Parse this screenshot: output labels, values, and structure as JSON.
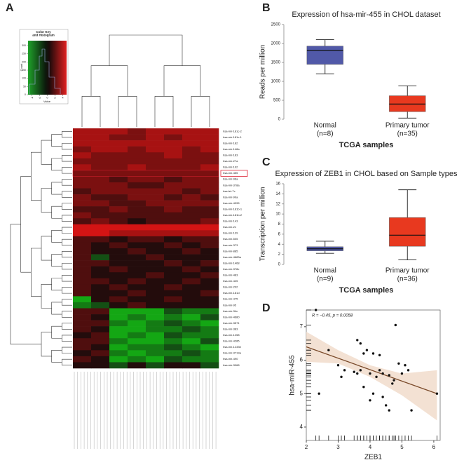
{
  "chart_data": [
    {
      "type": "heatmap",
      "panel": "A",
      "rows": [
        "hsa-mir-181c-2",
        "hsa-mir-181c-1",
        "hsa-mir-182",
        "hsa-mir-148a",
        "hsa-mir-183",
        "hsa-mir-27a",
        "hsa-mir-192",
        "hsa-mir-455",
        "hsa-mir-96a",
        "hsa-mir-378a",
        "hsa-let-7c",
        "hsa-mir-99a",
        "hsa-mir-4995",
        "hsa-mir-181b-1",
        "hsa-mir-181b-2",
        "hsa-mir-143",
        "hsa-mir-21",
        "hsa-mir-139",
        "hsa-mir-505",
        "hsa-mir-373",
        "hsa-mir-885",
        "hsa-mir-4683a",
        "hsa-mir-1468",
        "hsa-mir-378c",
        "hsa-mir-483",
        "hsa-mir-425",
        "hsa-mir-202",
        "hsa-mir-181d",
        "hsa-mir-475",
        "hsa-mir-95",
        "hsa-mir-34c",
        "hsa-mir-4680",
        "hsa-mir-3571",
        "hsa-mir-383",
        "hsa-mir-1258",
        "hsa-mir-4285",
        "hsa-mir-1233b",
        "hsa-mir-3713a",
        "hsa-mir-490",
        "hsa-mir-3068"
      ],
      "highlight_row": 7,
      "values": [
        [
          3,
          3,
          3,
          2,
          3,
          3,
          3,
          3
        ],
        [
          3,
          3,
          2,
          2,
          3,
          2,
          3,
          3
        ],
        [
          3,
          3,
          3,
          3,
          3,
          3,
          3,
          3
        ],
        [
          2,
          3,
          3,
          2,
          3,
          3,
          2,
          3
        ],
        [
          3,
          2,
          2,
          2,
          2,
          3,
          2,
          2
        ],
        [
          2,
          2,
          2,
          2,
          2,
          2,
          2,
          2
        ],
        [
          3,
          2,
          2,
          3,
          2,
          2,
          2,
          3
        ],
        [
          2,
          2,
          2,
          2,
          2,
          2,
          2,
          2
        ],
        [
          2,
          2,
          1,
          2,
          2,
          1,
          2,
          2
        ],
        [
          2,
          2,
          2,
          1,
          1,
          2,
          2,
          2
        ],
        [
          1,
          2,
          2,
          2,
          2,
          2,
          1,
          2
        ],
        [
          2,
          1,
          1,
          2,
          2,
          1,
          2,
          1
        ],
        [
          2,
          2,
          1,
          1,
          2,
          2,
          2,
          2
        ],
        [
          1,
          1,
          2,
          1,
          1,
          2,
          1,
          1
        ],
        [
          2,
          1,
          1,
          1,
          1,
          1,
          1,
          1
        ],
        [
          1,
          2,
          1,
          0,
          1,
          1,
          1,
          2
        ],
        [
          4,
          4,
          4,
          4,
          4,
          4,
          4,
          4
        ],
        [
          4,
          4,
          3,
          3,
          3,
          3,
          3,
          3
        ],
        [
          1,
          1,
          0,
          1,
          1,
          0,
          1,
          1
        ],
        [
          1,
          0,
          1,
          0,
          0,
          1,
          0,
          1
        ],
        [
          1,
          0,
          0,
          1,
          0,
          0,
          1,
          0
        ],
        [
          1,
          -1,
          0,
          0,
          1,
          0,
          0,
          0
        ],
        [
          1,
          1,
          0,
          0,
          0,
          1,
          0,
          1
        ],
        [
          1,
          0,
          1,
          0,
          0,
          0,
          1,
          0
        ],
        [
          1,
          0,
          0,
          0,
          1,
          0,
          0,
          1
        ],
        [
          1,
          1,
          0,
          1,
          0,
          0,
          1,
          0
        ],
        [
          1,
          0,
          1,
          0,
          0,
          1,
          0,
          0
        ],
        [
          1,
          0,
          0,
          1,
          0,
          0,
          0,
          1
        ],
        [
          -3,
          0,
          1,
          0,
          0,
          1,
          0,
          0
        ],
        [
          -2,
          -1,
          0,
          1,
          0,
          0,
          0,
          0
        ],
        [
          1,
          1,
          -3,
          -3,
          -3,
          -1,
          -2,
          -2
        ],
        [
          1,
          0,
          -3,
          -2,
          -3,
          -2,
          -3,
          -1
        ],
        [
          1,
          1,
          -2,
          -3,
          -2,
          -1,
          -2,
          -3
        ],
        [
          1,
          0,
          -3,
          -3,
          -2,
          -2,
          -1,
          -2
        ],
        [
          0,
          1,
          -3,
          -2,
          -3,
          -1,
          -2,
          -2
        ],
        [
          1,
          1,
          -2,
          -3,
          -3,
          -2,
          -3,
          -1
        ],
        [
          1,
          0,
          -3,
          -2,
          -2,
          -1,
          -2,
          -3
        ],
        [
          0,
          1,
          -2,
          -3,
          -2,
          -2,
          -1,
          -2
        ],
        [
          1,
          0,
          -3,
          -2,
          -3,
          -1,
          -2,
          -2
        ],
        [
          0,
          0,
          -1,
          0,
          -1,
          0,
          0,
          -1
        ]
      ],
      "color_key": {
        "title": [
          "Color Key",
          "and Histogram"
        ],
        "xlabel": "Value",
        "ylabel": "Count",
        "xlim": [
          -5,
          5
        ],
        "xticks": [
          -4,
          -2,
          0,
          2,
          4
        ],
        "ylim": [
          0,
          330
        ],
        "yticks": [
          0,
          50,
          100,
          150,
          200,
          250,
          300
        ]
      }
    },
    {
      "type": "box",
      "panel": "B",
      "title": "Expression of hsa-mir-455 in CHOL dataset",
      "ylabel": "Reads per million",
      "xlabel": "TCGA samples",
      "categories": [
        "Normal",
        "Primary tumor"
      ],
      "n_labels": [
        "(n=8)",
        "(n=35)"
      ],
      "min": [
        1200,
        30
      ],
      "q1": [
        1450,
        200
      ],
      "median": [
        1820,
        400
      ],
      "q3": [
        1930,
        620
      ],
      "max": [
        2100,
        880
      ],
      "colors": [
        "#5159a8",
        "#e8391f"
      ],
      "ylim": [
        0,
        2500
      ],
      "yticks": [
        0,
        500,
        1000,
        1500,
        2000,
        2500
      ]
    },
    {
      "type": "box",
      "panel": "C",
      "title": "Expression of ZEB1 in CHOL based on Sample types",
      "ylabel": "Transcription per million",
      "xlabel": "TCGA samples",
      "categories": [
        "Normal",
        "Primary tumor"
      ],
      "n_labels": [
        "(n=9)",
        "(n=36)"
      ],
      "min": [
        2.2,
        0.9
      ],
      "q1": [
        2.7,
        3.6
      ],
      "median": [
        3.1,
        5.8
      ],
      "q3": [
        3.5,
        9.3
      ],
      "max": [
        4.6,
        14.8
      ],
      "colors": [
        "#5159a8",
        "#e8391f"
      ],
      "ylim": [
        0,
        16
      ],
      "yticks": [
        0,
        2,
        4,
        6,
        8,
        10,
        12,
        14,
        16
      ]
    },
    {
      "type": "scatter",
      "panel": "D",
      "annotation": "R = −0.45, p = 0.0058",
      "xlabel": "ZEB1",
      "ylabel": "hsa-miR-455",
      "x": [
        2.3,
        3.6,
        3.7,
        4.8,
        3.9,
        4.1,
        4.3,
        3.8,
        2.7,
        3.0,
        3.2,
        3.1,
        3.6,
        3.7,
        4.0,
        4.2,
        4.4,
        4.6,
        5.0,
        5.2,
        4.7,
        4.9,
        5.1,
        4.1,
        4.4,
        4.5,
        4.6,
        4.0,
        3.8,
        2.4,
        5.3,
        6.1,
        3.5,
        4.3,
        4.75
      ],
      "y": [
        7.5,
        6.6,
        6.5,
        7.05,
        6.3,
        6.2,
        6.15,
        6.2,
        6.3,
        5.85,
        5.7,
        5.5,
        5.6,
        5.7,
        5.6,
        5.5,
        5.6,
        5.55,
        5.6,
        5.7,
        5.3,
        5.9,
        5.85,
        5.0,
        4.9,
        4.65,
        4.5,
        4.8,
        5.2,
        5.0,
        4.5,
        5.0,
        5.65,
        5.7,
        5.4
      ],
      "fit": {
        "x": [
          2,
          6.1
        ],
        "y": [
          6.4,
          5.0
        ]
      },
      "ci": {
        "x": [
          2,
          3,
          4,
          5,
          6.1
        ],
        "lower": [
          5.95,
          5.9,
          5.5,
          4.95,
          4.2
        ],
        "upper": [
          6.85,
          6.3,
          5.85,
          5.6,
          5.7
        ]
      },
      "color": "#111111",
      "line_color": "#7a4a2a",
      "band_color": "#f1dccb",
      "xlim": [
        2,
        6.2
      ],
      "xticks": [
        2,
        3,
        4,
        5,
        6
      ],
      "ylim": [
        3.6,
        7.5
      ],
      "yticks": [
        4,
        5,
        6,
        7
      ]
    }
  ]
}
